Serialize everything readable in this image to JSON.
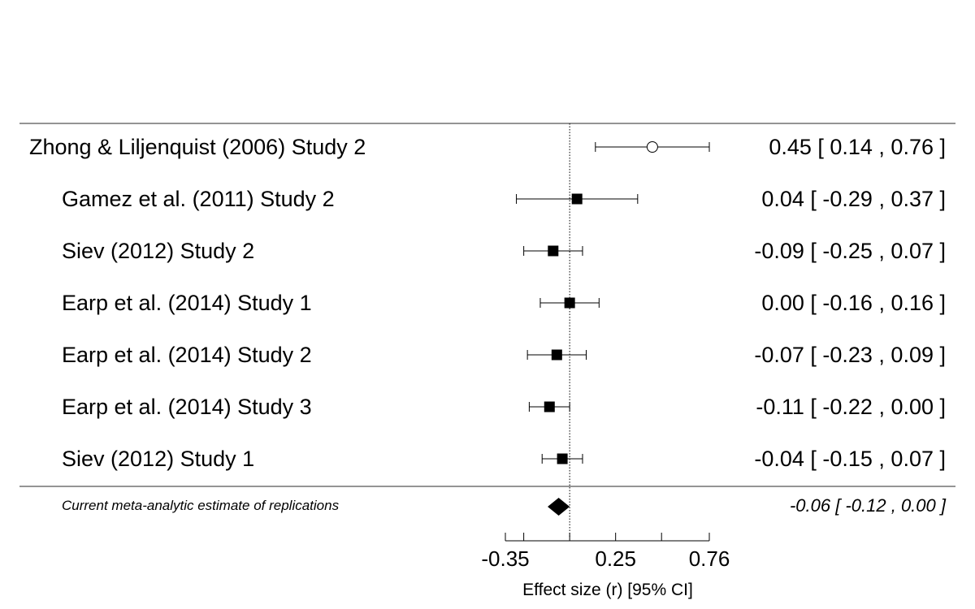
{
  "chart_data": {
    "type": "forest",
    "xlabel": "Effect size (r) [95% CI]",
    "xlim": [
      -0.35,
      0.76
    ],
    "reference_line": 0,
    "x_ticks": [
      -0.35,
      -0.25,
      0,
      0.25,
      0.5,
      0.76
    ],
    "x_tick_labels": [
      {
        "value": -0.35,
        "label": "-0.35"
      },
      {
        "value": 0.25,
        "label": "0.25"
      },
      {
        "value": 0.76,
        "label": "0.76"
      }
    ],
    "original": {
      "label": "Zhong & Liljenquist (2006) Study 2",
      "estimate": 0.45,
      "lower": 0.14,
      "upper": 0.76,
      "ci_text": "0.45 [  0.14 , 0.76 ]"
    },
    "studies": [
      {
        "label": "Gamez et al. (2011) Study 2",
        "estimate": 0.04,
        "lower": -0.29,
        "upper": 0.37,
        "ci_text": "0.04 [ -0.29 , 0.37 ]"
      },
      {
        "label": "Siev (2012) Study 2",
        "estimate": -0.09,
        "lower": -0.25,
        "upper": 0.07,
        "ci_text": "-0.09 [ -0.25 , 0.07 ]"
      },
      {
        "label": "Earp et al. (2014) Study 1",
        "estimate": 0.0,
        "lower": -0.16,
        "upper": 0.16,
        "ci_text": "0.00 [ -0.16 , 0.16 ]"
      },
      {
        "label": "Earp et al. (2014) Study 2",
        "estimate": -0.07,
        "lower": -0.23,
        "upper": 0.09,
        "ci_text": "-0.07 [ -0.23 , 0.09 ]"
      },
      {
        "label": "Earp et al. (2014) Study 3",
        "estimate": -0.11,
        "lower": -0.22,
        "upper": 0.0,
        "ci_text": "-0.11 [ -0.22 , 0.00 ]"
      },
      {
        "label": "Siev (2012) Study 1",
        "estimate": -0.04,
        "lower": -0.15,
        "upper": 0.07,
        "ci_text": "-0.04 [ -0.15 , 0.07 ]"
      }
    ],
    "summary": {
      "label": "Current meta-analytic estimate of replications",
      "estimate": -0.06,
      "lower": -0.12,
      "upper": 0.0,
      "ci_text": "-0.06 [ -0.12 , 0.00 ]"
    }
  }
}
